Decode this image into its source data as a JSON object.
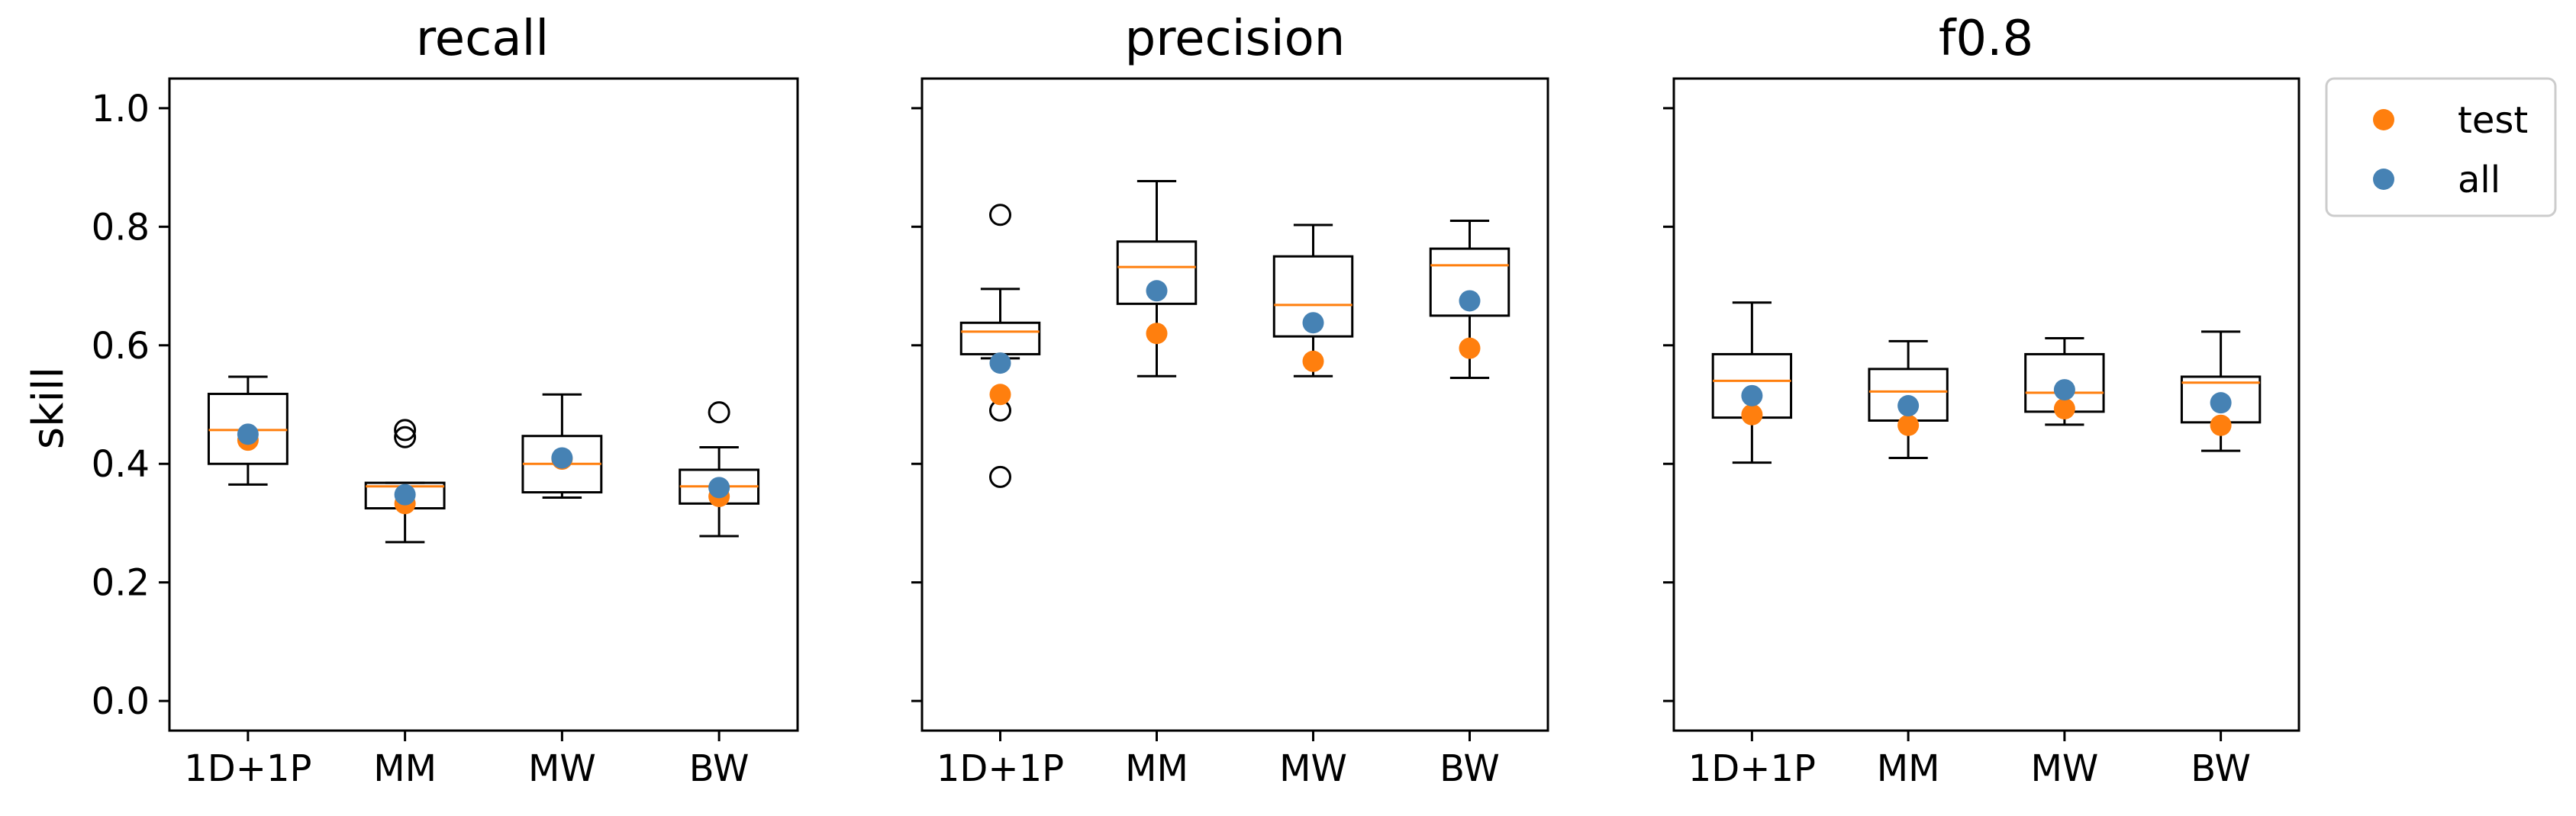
{
  "chart_data": {
    "type": "box",
    "ylabel": "skill",
    "ylim": [
      -0.05,
      1.05
    ],
    "yticks": [
      "0.0",
      "0.2",
      "0.4",
      "0.6",
      "0.8",
      "1.0"
    ],
    "categories": [
      "1D+1P",
      "MM",
      "MW",
      "BW"
    ],
    "colors": {
      "test": "#ff7f0e",
      "all": "#4682b4",
      "median": "#ff7f0e",
      "box": "#000000"
    },
    "legend": {
      "position": "outside-top-right",
      "entries": [
        {
          "label": "test",
          "color": "#ff7f0e"
        },
        {
          "label": "all",
          "color": "#4682b4"
        }
      ]
    },
    "panels": [
      {
        "title": "recall",
        "boxes": [
          {
            "whislo": 0.365,
            "q1": 0.4,
            "med": 0.457,
            "q3": 0.518,
            "whishi": 0.547,
            "fliers": [],
            "test": 0.44,
            "all": 0.45
          },
          {
            "whislo": 0.268,
            "q1": 0.325,
            "med": 0.362,
            "q3": 0.368,
            "whishi": 0.368,
            "fliers": [
              0.445,
              0.457
            ],
            "test": 0.333,
            "all": 0.348
          },
          {
            "whislo": 0.343,
            "q1": 0.352,
            "med": 0.4,
            "q3": 0.447,
            "whishi": 0.517,
            "fliers": [],
            "test": 0.408,
            "all": 0.41
          },
          {
            "whislo": 0.278,
            "q1": 0.333,
            "med": 0.362,
            "q3": 0.39,
            "whishi": 0.428,
            "fliers": [
              0.487
            ],
            "test": 0.345,
            "all": 0.36
          }
        ]
      },
      {
        "title": "precision",
        "boxes": [
          {
            "whislo": 0.578,
            "q1": 0.585,
            "med": 0.623,
            "q3": 0.638,
            "whishi": 0.695,
            "fliers": [
              0.82,
              0.49,
              0.378
            ],
            "test": 0.517,
            "all": 0.57
          },
          {
            "whislo": 0.548,
            "q1": 0.67,
            "med": 0.732,
            "q3": 0.775,
            "whishi": 0.877,
            "fliers": [],
            "test": 0.62,
            "all": 0.692
          },
          {
            "whislo": 0.548,
            "q1": 0.615,
            "med": 0.668,
            "q3": 0.75,
            "whishi": 0.803,
            "fliers": [],
            "test": 0.573,
            "all": 0.638
          },
          {
            "whislo": 0.545,
            "q1": 0.65,
            "med": 0.735,
            "q3": 0.763,
            "whishi": 0.81,
            "fliers": [],
            "test": 0.595,
            "all": 0.675
          }
        ]
      },
      {
        "title": "f0.8",
        "boxes": [
          {
            "whislo": 0.402,
            "q1": 0.478,
            "med": 0.54,
            "q3": 0.585,
            "whishi": 0.672,
            "fliers": [],
            "test": 0.483,
            "all": 0.515
          },
          {
            "whislo": 0.41,
            "q1": 0.473,
            "med": 0.522,
            "q3": 0.56,
            "whishi": 0.607,
            "fliers": [],
            "test": 0.465,
            "all": 0.498
          },
          {
            "whislo": 0.466,
            "q1": 0.488,
            "med": 0.52,
            "q3": 0.585,
            "whishi": 0.612,
            "fliers": [],
            "test": 0.493,
            "all": 0.525
          },
          {
            "whislo": 0.422,
            "q1": 0.47,
            "med": 0.537,
            "q3": 0.547,
            "whishi": 0.623,
            "fliers": [],
            "test": 0.465,
            "all": 0.503
          }
        ]
      }
    ]
  }
}
